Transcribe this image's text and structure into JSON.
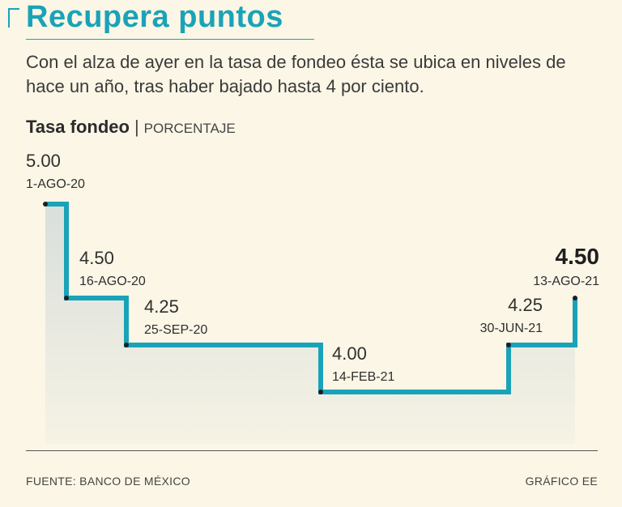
{
  "header": {
    "title": "Recupera puntos",
    "subtitle": "Con el alza de ayer en la tasa de fondeo ésta se ubica en niveles de hace un año, tras haber bajado hasta 4 por ciento."
  },
  "chart_header": {
    "title": "Tasa fondeo",
    "separator": "|",
    "unit": "PORCENTAJE"
  },
  "chart_data": {
    "type": "line",
    "title": "Tasa fondeo",
    "ylabel": "PORCENTAJE",
    "xlabel": "",
    "step": true,
    "x": [
      "1-AGO-20",
      "16-AGO-20",
      "25-SEP-20",
      "14-FEB-21",
      "30-JUN-21",
      "13-AGO-21"
    ],
    "values": [
      5.0,
      4.5,
      4.25,
      4.0,
      4.25,
      4.5
    ],
    "labels": [
      "5.00",
      "4.50",
      "4.25",
      "4.00",
      "4.25",
      "4.50"
    ],
    "highlight_last": true,
    "ylim": [
      3.5,
      5.0
    ],
    "colors": {
      "line": "#1aa3b8",
      "area": "#d9dfdc",
      "marker": "#1f1f1f"
    }
  },
  "footer": {
    "source": "FUENTE: BANCO DE MÉXICO",
    "credit": "GRÁFICO EE"
  }
}
